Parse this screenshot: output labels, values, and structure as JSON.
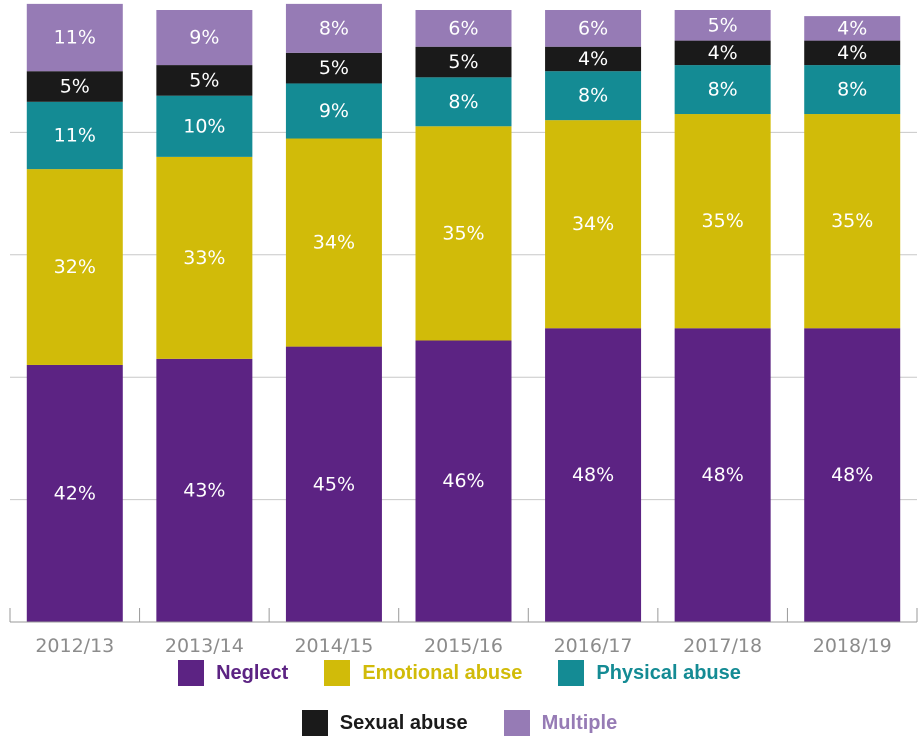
{
  "chart_data": {
    "type": "bar",
    "stacked": true,
    "orientation": "vertical",
    "categories": [
      "2012/13",
      "2013/14",
      "2014/15",
      "2015/16",
      "2016/17",
      "2017/18",
      "2018/19"
    ],
    "series": [
      {
        "name": "Neglect",
        "color": "#5c2383",
        "values": [
          42,
          43,
          45,
          46,
          48,
          48,
          48
        ],
        "labels": [
          "42%",
          "43%",
          "45%",
          "46%",
          "48%",
          "48%",
          "48%"
        ]
      },
      {
        "name": "Emotional abuse",
        "color": "#d1bb09",
        "values": [
          32,
          33,
          34,
          35,
          34,
          35,
          35
        ],
        "labels": [
          "32%",
          "33%",
          "34%",
          "35%",
          "34%",
          "35%",
          "35%"
        ]
      },
      {
        "name": "Physical abuse",
        "color": "#148b94",
        "values": [
          11,
          10,
          9,
          8,
          8,
          8,
          8
        ],
        "labels": [
          "11%",
          "10%",
          "9%",
          "8%",
          "8%",
          "8%",
          "8%"
        ]
      },
      {
        "name": "Sexual abuse",
        "color": "#1a1a1a",
        "values": [
          5,
          5,
          5,
          5,
          4,
          4,
          4
        ],
        "labels": [
          "5%",
          "5%",
          "5%",
          "5%",
          "4%",
          "4%",
          "4%"
        ]
      },
      {
        "name": "Multiple",
        "color": "#967bb5",
        "values": [
          11,
          9,
          8,
          6,
          6,
          5,
          4
        ],
        "labels": [
          "11%",
          "9%",
          "8%",
          "6%",
          "6%",
          "5%",
          "4%"
        ]
      }
    ],
    "ylim": [
      0,
      100
    ],
    "grid": true,
    "legend_position": "bottom"
  },
  "legend": {
    "row1": [
      {
        "label": "Neglect",
        "color": "#5c2383"
      },
      {
        "label": "Emotional abuse",
        "color": "#d1bb09"
      },
      {
        "label": "Physical abuse",
        "color": "#148b94"
      }
    ],
    "row2": [
      {
        "label": "Sexual abuse",
        "color": "#1a1a1a"
      },
      {
        "label": "Multiple",
        "color": "#967bb5"
      }
    ]
  }
}
